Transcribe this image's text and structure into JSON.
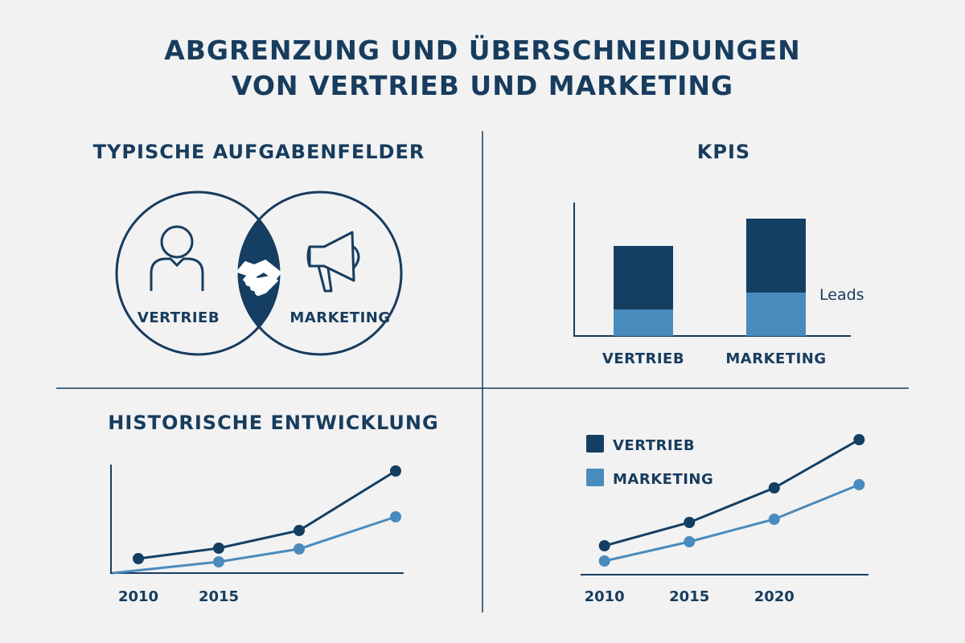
{
  "title": {
    "line1": "ABGRENZUNG UND ÜBERSCHNEIDUNGEN",
    "line2": "VON VERTRIEB UND MARKETING"
  },
  "colors": {
    "dark": "#143f63",
    "light": "#4a8bbd",
    "background": "#f2f2f2",
    "text": "#173c5e"
  },
  "venn": {
    "heading": "TYPISCHE AUFGABENFELDER",
    "left_label": "VERTRIEB",
    "right_label": "MARKETING",
    "icons": [
      "person-icon",
      "handshake-icon",
      "megaphone-icon"
    ]
  },
  "kpis": {
    "heading": "KPIS",
    "annotation": "Leads"
  },
  "history": {
    "heading": "HISTORISCHE ENTWICKLUNG"
  },
  "legend": {
    "dark": "VERTRIEB",
    "light": "MARKETING"
  },
  "chart_data": [
    {
      "type": "bar",
      "stacked": true,
      "categories": [
        "VERTRIEB",
        "MARKETING"
      ],
      "series": [
        {
          "name": "Leads",
          "color": "#4a8bbd",
          "values": [
            33,
            54
          ]
        },
        {
          "color": "#143f63",
          "values": [
            79,
            92
          ]
        }
      ],
      "ylim": [
        0,
        166
      ],
      "grid": false
    },
    {
      "type": "line",
      "x_ticks": [
        2010,
        2015
      ],
      "xlim": [
        2008.4,
        2027.5
      ],
      "ylim": [
        0,
        135
      ],
      "series": [
        {
          "color": "#143f63",
          "x": [
            2010,
            2015,
            2020,
            2026
          ],
          "y": [
            18,
            31,
            53,
            127
          ],
          "markers": [
            true,
            true,
            true,
            true
          ]
        },
        {
          "color": "#4a8bbd",
          "x": [
            2008.4,
            2015,
            2020,
            2026
          ],
          "y": [
            0,
            14,
            30,
            70
          ],
          "markers": [
            false,
            true,
            true,
            true
          ]
        }
      ],
      "grid": false
    },
    {
      "type": "line",
      "x_ticks": [
        2010,
        2015,
        2020
      ],
      "xlim": [
        2008.5,
        2026.5
      ],
      "ylim": [
        0,
        180
      ],
      "legend_position": "top-left",
      "series": [
        {
          "name": "VERTRIEB",
          "color": "#143f63",
          "x": [
            2010,
            2015,
            2020,
            2025
          ],
          "y": [
            36,
            65,
            108,
            168
          ]
        },
        {
          "name": "MARKETING",
          "color": "#4a8bbd",
          "x": [
            2010,
            2015,
            2020,
            2025
          ],
          "y": [
            17,
            41,
            69,
            112
          ]
        }
      ],
      "grid": false
    }
  ]
}
